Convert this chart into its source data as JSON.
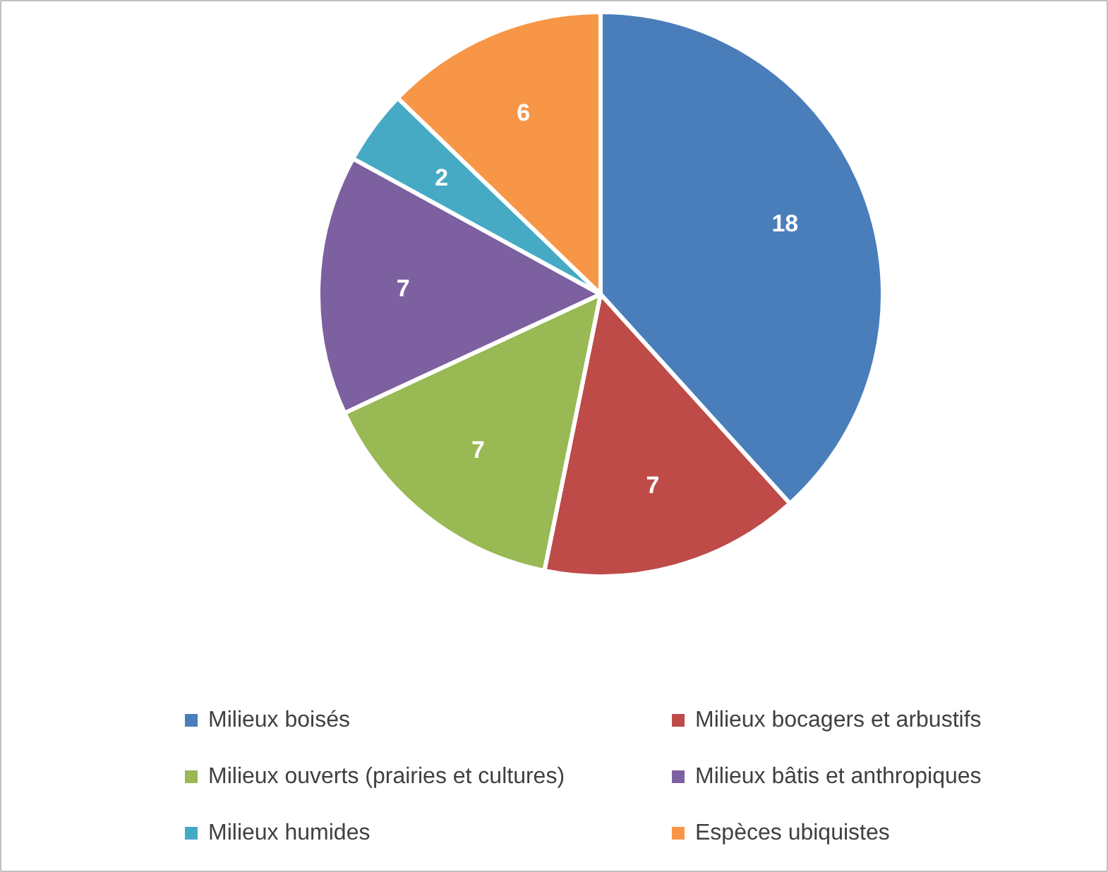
{
  "chart_data": {
    "type": "pie",
    "categories": [
      "Milieux boisés",
      "Milieux bocagers et arbustifs",
      "Milieux ouverts (prairies et cultures)",
      "Milieux bâtis et anthropiques",
      "Milieux humides",
      "Espèces ubiquistes"
    ],
    "values": [
      18,
      7,
      7,
      7,
      2,
      6
    ],
    "colors": [
      "#4a7ebb",
      "#be4b48",
      "#98b954",
      "#7d60a0",
      "#46aac5",
      "#f79646"
    ],
    "data_labels": true,
    "legend": "bottom"
  }
}
